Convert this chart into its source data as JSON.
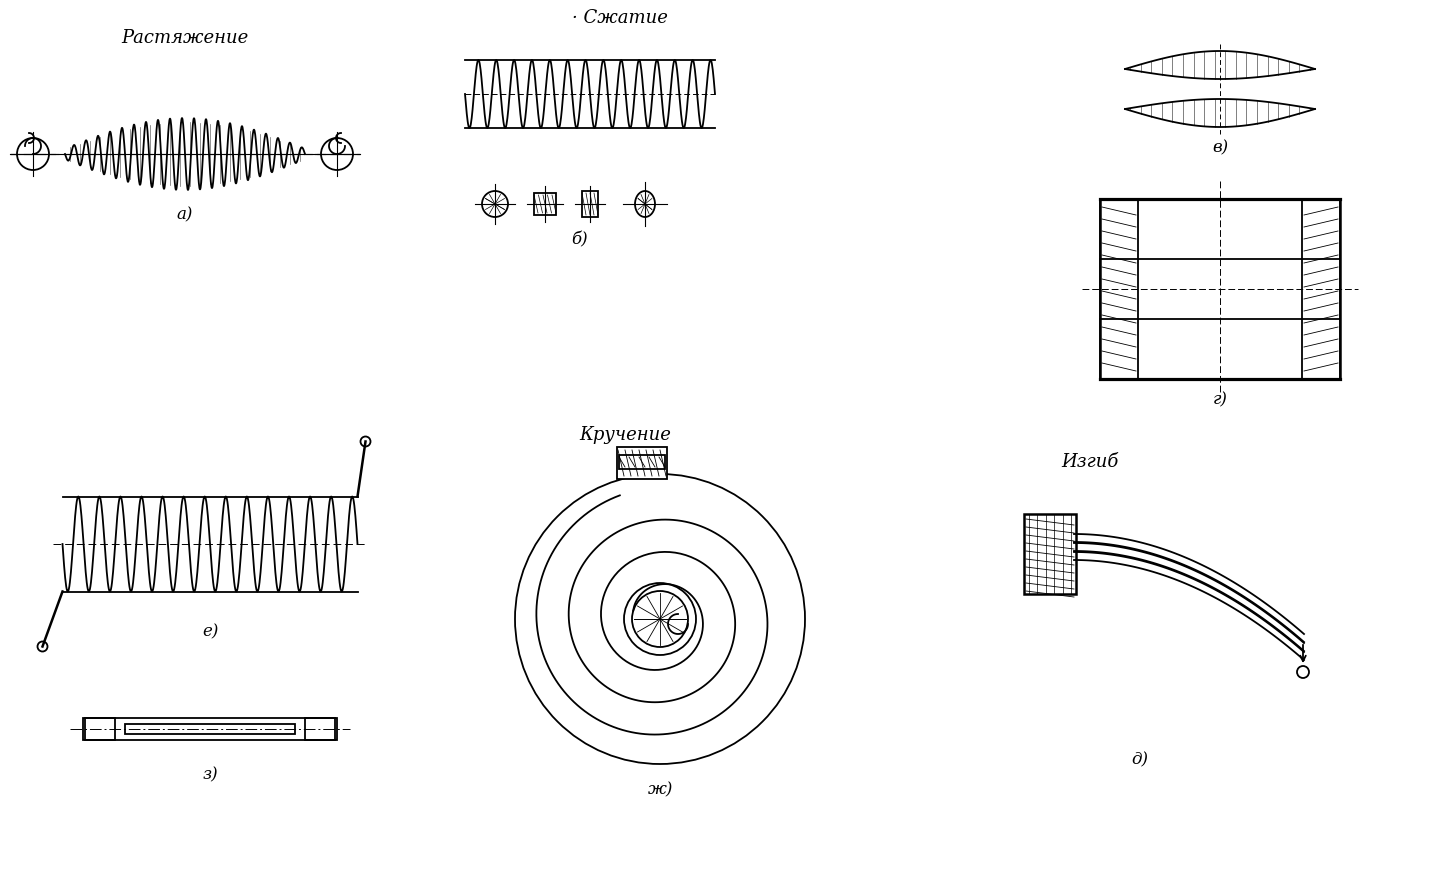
{
  "bg_color": "#ffffff",
  "line_color": "#000000",
  "labels": {
    "rastyazhenie": "Растяжение",
    "szhatiye": "· Сжатие",
    "krucheniye": "Кручение",
    "izgib": "Изгиб",
    "a": "а)",
    "b": "б)",
    "v": "в)",
    "g": "г)",
    "e": "е)",
    "zh": "ж)",
    "z": "з)",
    "d": "д)"
  },
  "figsize": [
    14.4,
    8.7
  ],
  "dpi": 100
}
